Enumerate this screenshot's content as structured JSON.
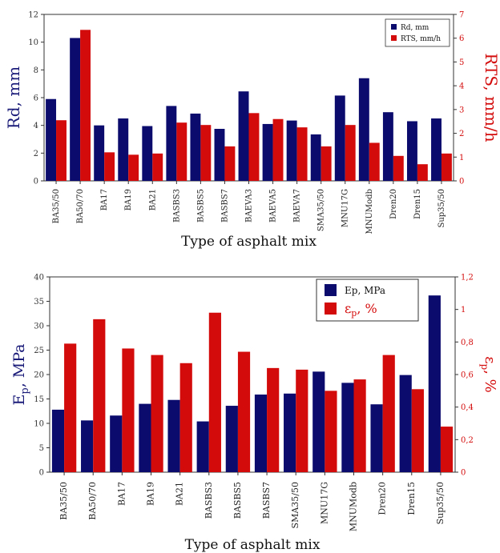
{
  "colors": {
    "primary": "#0b0b6e",
    "secondary": "#d40b0b",
    "axis_left": "#1b1b7a",
    "axis_right": "#d40b0b"
  },
  "chart_data": [
    {
      "type": "bar",
      "xlabel": "Type of asphalt mix",
      "ylabel_left": "Rd, mm",
      "ylabel_right": "RTS, mm/h",
      "ylim_left": [
        0,
        12
      ],
      "ylim_right": [
        0,
        7
      ],
      "yticks_left": [
        "0",
        "2",
        "4",
        "6",
        "8",
        "10",
        "12"
      ],
      "yticks_right": [
        "0",
        "1",
        "2",
        "3",
        "4",
        "5",
        "6",
        "7"
      ],
      "legend_position": "top-right",
      "categories": [
        "BA35/50",
        "BA50/70",
        "BA17",
        "BA19",
        "BA21",
        "BASBS3",
        "BASBS5",
        "BASBS7",
        "BAEVA3",
        "BAEVA5",
        "BAEVA7",
        "SMA35/50",
        "MNU17G",
        "MNUModb",
        "Dren20",
        "Dren15",
        "Sup35/50"
      ],
      "series": [
        {
          "name": "Rd, mm",
          "axis": "left",
          "values": [
            5.9,
            10.3,
            4.0,
            4.5,
            3.95,
            5.4,
            4.85,
            3.75,
            6.45,
            4.1,
            4.35,
            3.35,
            6.15,
            7.4,
            4.95,
            4.3,
            4.5
          ]
        },
        {
          "name": "RTS, mm/h",
          "axis": "right",
          "values": [
            2.55,
            6.35,
            1.2,
            1.1,
            1.15,
            2.45,
            2.35,
            1.45,
            2.85,
            2.6,
            2.25,
            1.45,
            2.35,
            1.6,
            1.05,
            0.7,
            1.15
          ]
        }
      ]
    },
    {
      "type": "bar",
      "xlabel": "Type of asphalt mix",
      "ylabel_left_main": "E",
      "ylabel_left_sub": "p",
      "ylabel_left_rest": ", MPa",
      "ylabel_right_main": "ε",
      "ylabel_right_sub": "p",
      "ylabel_right_rest": ", %",
      "ylim_left": [
        0,
        40
      ],
      "ylim_right": [
        0,
        1.2
      ],
      "yticks_left": [
        "0",
        "5",
        "10",
        "15",
        "20",
        "25",
        "30",
        "35",
        "40"
      ],
      "yticks_right": [
        "0",
        "0,2",
        "0,4",
        "0,6",
        "0,8",
        "1",
        "1,2"
      ],
      "legend_position": "top-right",
      "categories": [
        "BA35/50",
        "BA50/70",
        "BA17",
        "BA19",
        "BA21",
        "BASBS3",
        "BASBS5",
        "BASBS7",
        "SMA35/50",
        "MNU17G",
        "MNUModb",
        "Dren20",
        "Dren15",
        "Sup35/50"
      ],
      "series": [
        {
          "name": "Ep, MPa",
          "axis": "left",
          "values": [
            12.8,
            10.6,
            11.6,
            14.0,
            14.8,
            10.4,
            13.6,
            15.9,
            16.1,
            20.6,
            18.3,
            13.9,
            19.9,
            36.2
          ]
        },
        {
          "name_main": "ε",
          "name_sub": "p",
          "name_rest": ", %",
          "axis": "right",
          "values": [
            0.79,
            0.94,
            0.76,
            0.72,
            0.67,
            0.98,
            0.74,
            0.64,
            0.63,
            0.5,
            0.57,
            0.72,
            0.51,
            0.28
          ]
        }
      ]
    }
  ]
}
